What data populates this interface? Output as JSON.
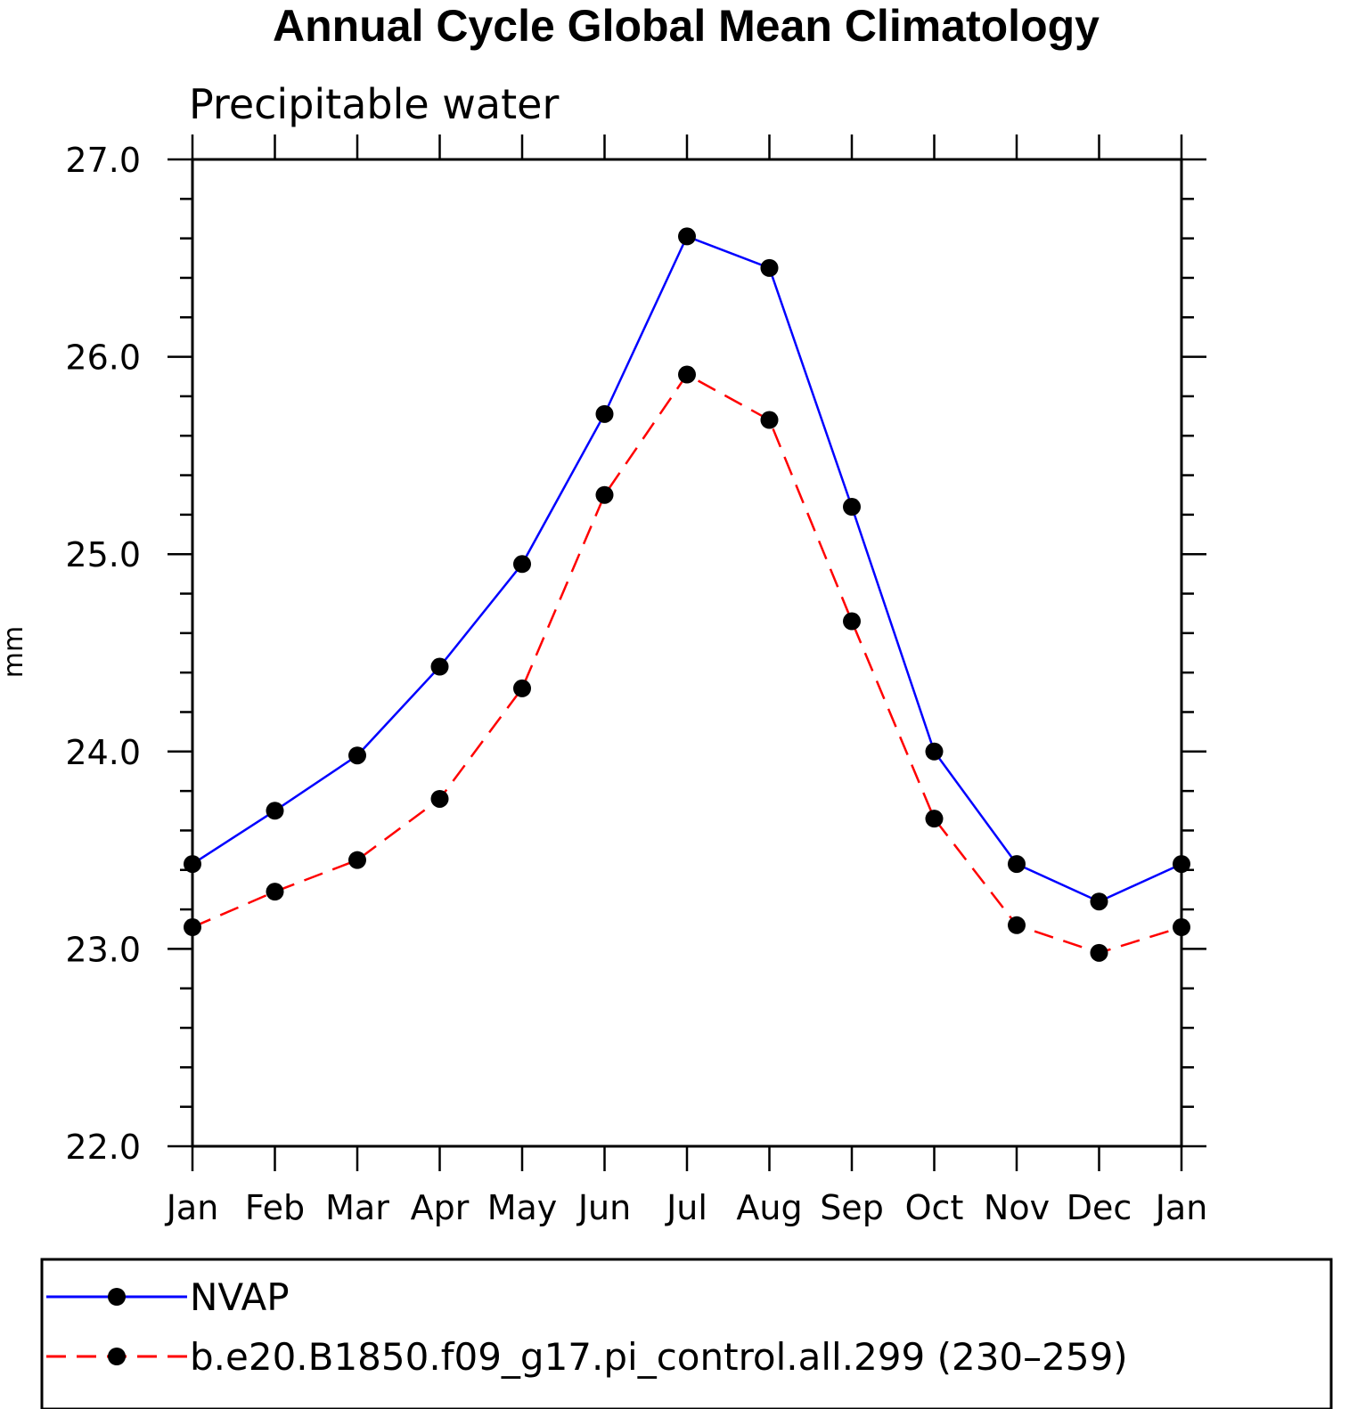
{
  "chart_data": {
    "type": "line",
    "title": "Annual Cycle Global Mean Climatology",
    "subtitle": "Precipitable water",
    "xlabel": "",
    "ylabel": "mm",
    "categories": [
      "Jan",
      "Feb",
      "Mar",
      "Apr",
      "May",
      "Jun",
      "Jul",
      "Aug",
      "Sep",
      "Oct",
      "Nov",
      "Dec",
      "Jan"
    ],
    "ylim": [
      22.0,
      27.0
    ],
    "yticks": [
      "22.0",
      "23.0",
      "24.0",
      "25.0",
      "26.0",
      "27.0"
    ],
    "series": [
      {
        "name": "NVAP",
        "color": "#0000ff",
        "dash": "solid",
        "values": [
          23.43,
          23.7,
          23.98,
          24.43,
          24.95,
          25.71,
          26.61,
          26.45,
          25.24,
          24.0,
          23.43,
          23.24,
          23.43
        ]
      },
      {
        "name": "b.e20.B1850.f09_g17.pi_control.all.299 (230–259)",
        "color": "#ff0000",
        "dash": "dashed",
        "values": [
          23.11,
          23.29,
          23.45,
          23.76,
          24.32,
          25.3,
          25.91,
          25.68,
          24.66,
          23.66,
          23.12,
          22.98,
          23.11
        ]
      }
    ],
    "legend_position": "bottom"
  }
}
